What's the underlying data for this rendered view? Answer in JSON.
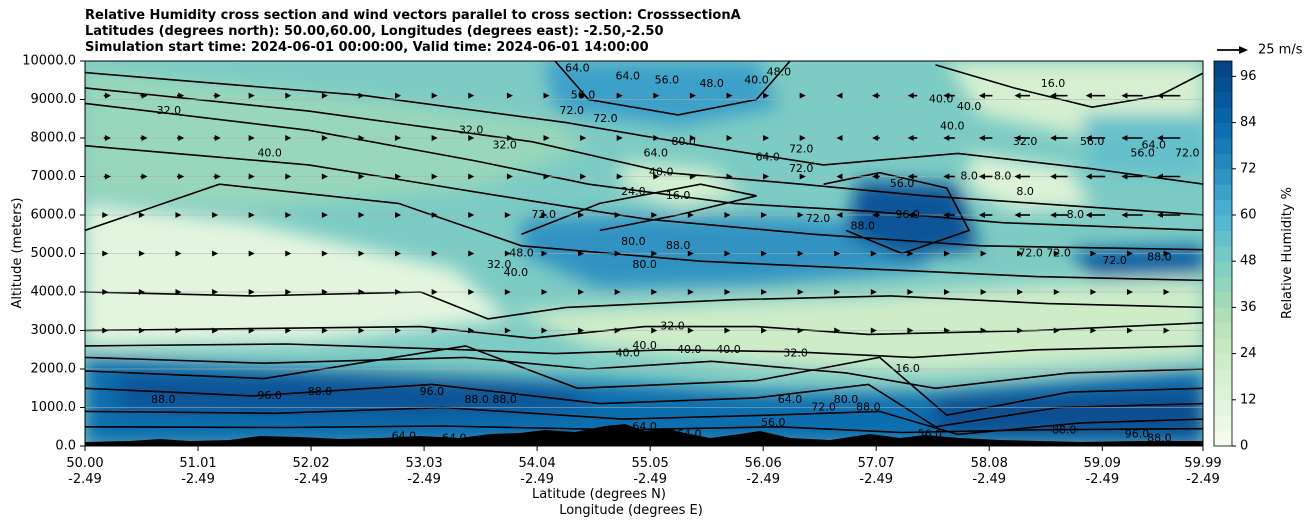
{
  "titles": {
    "line1": "Relative Humidity cross section and wind vectors parallel to cross section: CrosssectionA",
    "line2": "Latitudes (degrees north): 50.00,60.00, Longitudes (degrees east): -2.50,-2.50",
    "line3": "Simulation start time: 2024-06-01 00:00:00, Valid time: 2024-06-01 14:00:00"
  },
  "chart_data": {
    "type": "heatmap",
    "title": "Relative Humidity cross section and wind vectors parallel to cross section: CrosssectionA",
    "ylabel": "Altitude (meters)",
    "xlabel_lat": "Latitude (degrees N)",
    "xlabel_lon": "Longitude (degrees E)",
    "ylim": [
      0,
      10000
    ],
    "yticks": [
      "0.0",
      "1000.0",
      "2000.0",
      "3000.0",
      "4000.0",
      "5000.0",
      "6000.0",
      "7000.0",
      "8000.0",
      "9000.0",
      "10000.0"
    ],
    "yticks_values": [
      0,
      1000,
      2000,
      3000,
      4000,
      5000,
      6000,
      7000,
      8000,
      9000,
      10000
    ],
    "xticks_lat": [
      "50.00",
      "51.01",
      "52.02",
      "53.03",
      "54.04",
      "55.05",
      "56.06",
      "57.07",
      "58.08",
      "59.09",
      "59.99"
    ],
    "xticks_lon": [
      "-2.49",
      "-2.49",
      "-2.49",
      "-2.49",
      "-2.49",
      "-2.49",
      "-2.49",
      "-2.49",
      "-2.49",
      "-2.49",
      "-2.49"
    ],
    "xticks_values": [
      50.0,
      51.01,
      52.02,
      53.03,
      54.04,
      55.05,
      56.06,
      57.07,
      58.08,
      59.09,
      59.99
    ],
    "xlim": [
      50.0,
      59.99
    ],
    "grid": "horizontal",
    "colorbar": {
      "label": "Relative Humidity %",
      "ticks": [
        "0",
        "12",
        "24",
        "36",
        "48",
        "60",
        "72",
        "84",
        "96"
      ],
      "tick_values": [
        0,
        12,
        24,
        36,
        48,
        60,
        72,
        84,
        96
      ],
      "range": [
        0,
        100
      ],
      "colormap": "GnBu"
    },
    "wind_key": {
      "label": "25 m/s"
    },
    "contour_labels": [
      {
        "text": "32.0",
        "lat": 50.75,
        "alt": 8700
      },
      {
        "text": "40.0",
        "lat": 51.65,
        "alt": 7600
      },
      {
        "text": "32.0",
        "lat": 53.45,
        "alt": 8200
      },
      {
        "text": "32.0",
        "lat": 53.75,
        "alt": 7800
      },
      {
        "text": "64.0",
        "lat": 54.4,
        "alt": 9800
      },
      {
        "text": "56.0",
        "lat": 54.45,
        "alt": 9100
      },
      {
        "text": "72.0",
        "lat": 54.35,
        "alt": 8700
      },
      {
        "text": "64.0",
        "lat": 54.85,
        "alt": 9600
      },
      {
        "text": "56.0",
        "lat": 55.2,
        "alt": 9500
      },
      {
        "text": "48.0",
        "lat": 55.6,
        "alt": 9400
      },
      {
        "text": "40.0",
        "lat": 56.0,
        "alt": 9500
      },
      {
        "text": "48.0",
        "lat": 56.2,
        "alt": 9700
      },
      {
        "text": "72.0",
        "lat": 54.65,
        "alt": 8500
      },
      {
        "text": "80.0",
        "lat": 55.35,
        "alt": 7900
      },
      {
        "text": "64.0",
        "lat": 55.1,
        "alt": 7600
      },
      {
        "text": "64.0",
        "lat": 56.1,
        "alt": 7500
      },
      {
        "text": "72.0",
        "lat": 56.4,
        "alt": 7200
      },
      {
        "text": "72.0",
        "lat": 56.4,
        "alt": 7700
      },
      {
        "text": "24.0",
        "lat": 54.9,
        "alt": 6600
      },
      {
        "text": "16.0",
        "lat": 55.3,
        "alt": 6500
      },
      {
        "text": "40.0",
        "lat": 55.15,
        "alt": 7100
      },
      {
        "text": "72.0",
        "lat": 54.1,
        "alt": 6000
      },
      {
        "text": "80.0",
        "lat": 54.9,
        "alt": 5300
      },
      {
        "text": "88.0",
        "lat": 55.3,
        "alt": 5200
      },
      {
        "text": "80.0",
        "lat": 55.0,
        "alt": 4700
      },
      {
        "text": "48.0",
        "lat": 53.9,
        "alt": 5000
      },
      {
        "text": "40.0",
        "lat": 53.85,
        "alt": 4500
      },
      {
        "text": "32.0",
        "lat": 53.7,
        "alt": 4700
      },
      {
        "text": "72.0",
        "lat": 56.55,
        "alt": 5900
      },
      {
        "text": "88.0",
        "lat": 56.95,
        "alt": 5700
      },
      {
        "text": "96.0",
        "lat": 57.35,
        "alt": 6000
      },
      {
        "text": "56.0",
        "lat": 57.3,
        "alt": 6800
      },
      {
        "text": "40.0",
        "lat": 57.75,
        "alt": 8300
      },
      {
        "text": "8.0",
        "lat": 57.9,
        "alt": 7000
      },
      {
        "text": "8.0",
        "lat": 58.2,
        "alt": 7000
      },
      {
        "text": "8.0",
        "lat": 58.4,
        "alt": 6600
      },
      {
        "text": "8.0",
        "lat": 58.85,
        "alt": 6000
      },
      {
        "text": "32.0",
        "lat": 58.4,
        "alt": 7900
      },
      {
        "text": "16.0",
        "lat": 58.65,
        "alt": 9400
      },
      {
        "text": "40.0",
        "lat": 57.65,
        "alt": 9000
      },
      {
        "text": "40.0",
        "lat": 57.9,
        "alt": 8800
      },
      {
        "text": "72.0",
        "lat": 58.45,
        "alt": 5000
      },
      {
        "text": "72.0",
        "lat": 58.7,
        "alt": 5000
      },
      {
        "text": "72.0",
        "lat": 59.2,
        "alt": 4800
      },
      {
        "text": "88.0",
        "lat": 59.6,
        "alt": 4900
      },
      {
        "text": "56.0",
        "lat": 59.0,
        "alt": 7900
      },
      {
        "text": "56.0",
        "lat": 59.45,
        "alt": 7600
      },
      {
        "text": "64.0",
        "lat": 59.55,
        "alt": 7800
      },
      {
        "text": "72.0",
        "lat": 59.85,
        "alt": 7600
      },
      {
        "text": "32.0",
        "lat": 55.25,
        "alt": 3100
      },
      {
        "text": "40.0",
        "lat": 54.85,
        "alt": 2400
      },
      {
        "text": "40.0",
        "lat": 55.0,
        "alt": 2600
      },
      {
        "text": "40.0",
        "lat": 55.4,
        "alt": 2500
      },
      {
        "text": "40.0",
        "lat": 55.75,
        "alt": 2500
      },
      {
        "text": "32.0",
        "lat": 56.35,
        "alt": 2400
      },
      {
        "text": "16.0",
        "lat": 57.35,
        "alt": 2000
      },
      {
        "text": "88.0",
        "lat": 50.7,
        "alt": 1200
      },
      {
        "text": "96.0",
        "lat": 51.65,
        "alt": 1300
      },
      {
        "text": "88.0",
        "lat": 52.1,
        "alt": 1400
      },
      {
        "text": "96.0",
        "lat": 53.1,
        "alt": 1400
      },
      {
        "text": "88.0",
        "lat": 53.5,
        "alt": 1200
      },
      {
        "text": "88.0",
        "lat": 53.75,
        "alt": 1200
      },
      {
        "text": "64.0",
        "lat": 52.85,
        "alt": 250
      },
      {
        "text": "64.0",
        "lat": 53.3,
        "alt": 200
      },
      {
        "text": "64.0",
        "lat": 55.0,
        "alt": 500
      },
      {
        "text": "64.0",
        "lat": 55.4,
        "alt": 300
      },
      {
        "text": "64.0",
        "lat": 56.3,
        "alt": 1200
      },
      {
        "text": "56.0",
        "lat": 56.15,
        "alt": 600
      },
      {
        "text": "72.0",
        "lat": 56.6,
        "alt": 1000
      },
      {
        "text": "80.0",
        "lat": 56.8,
        "alt": 1200
      },
      {
        "text": "88.0",
        "lat": 57.0,
        "alt": 1000
      },
      {
        "text": "72.0",
        "lat": 56.95,
        "alt": 100
      },
      {
        "text": "56.0",
        "lat": 57.55,
        "alt": 300
      },
      {
        "text": "88.0",
        "lat": 58.75,
        "alt": 400
      },
      {
        "text": "96.0",
        "lat": 59.4,
        "alt": 300
      },
      {
        "text": "88.0",
        "lat": 59.6,
        "alt": 200
      }
    ],
    "wind_rows_alt": [
      9100,
      8000,
      7000,
      6000,
      5000,
      4000,
      3000
    ],
    "wind_note": "arrows are small (<5 m/s) on the left half; westward (pointing left) arrows of ~5-10 m/s over 56.5-60N aloft"
  }
}
